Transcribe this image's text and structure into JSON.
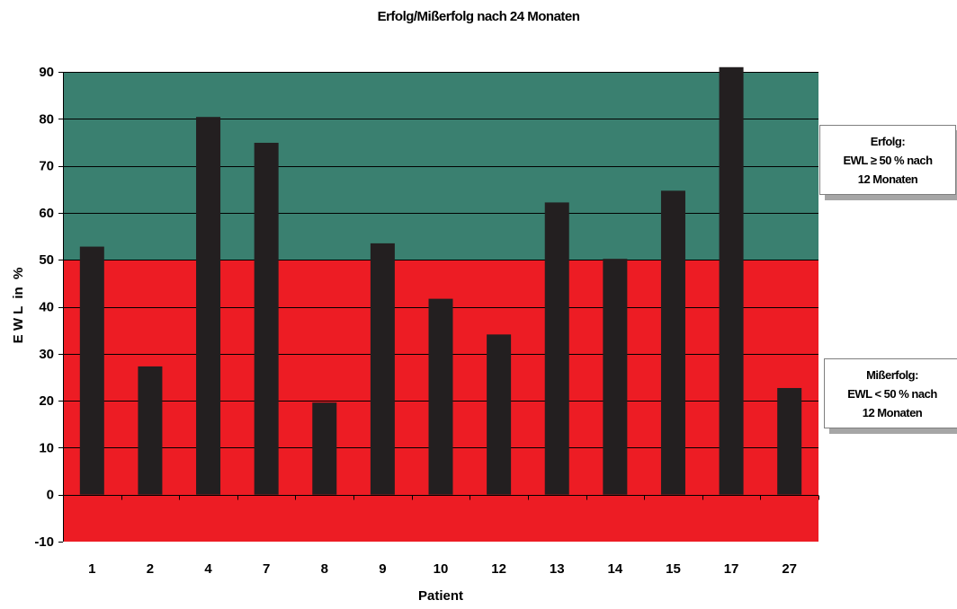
{
  "chart_data": {
    "type": "bar",
    "title": "Erfolg/Mißerfolg nach 24 Monaten",
    "xlabel": "Patient",
    "ylabel": "E W L  in  %",
    "categories": [
      "1",
      "2",
      "4",
      "7",
      "8",
      "9",
      "10",
      "12",
      "13",
      "14",
      "15",
      "17",
      "27"
    ],
    "values": [
      52.8,
      27.3,
      80.4,
      74.9,
      19.6,
      53.5,
      41.7,
      34.1,
      62.2,
      50.2,
      64.7,
      91,
      22.7
    ],
    "ylim": [
      -10,
      90
    ],
    "yticks": [
      "-10",
      "0",
      "10",
      "20",
      "30",
      "40",
      "50",
      "60",
      "70",
      "80",
      "90"
    ],
    "threshold": 50,
    "grid": true,
    "legend_position": "right",
    "regions": [
      {
        "label_lines": [
          "Erfolg:",
          "EWL ≥ 50 % nach",
          "12 Monaten"
        ],
        "color": "#3a8070"
      },
      {
        "label_lines": [
          "Mißerfolg:",
          "EWL < 50 % nach",
          "12 Monaten"
        ],
        "color": "#ed1c24"
      }
    ],
    "bar_color": "#231f20",
    "axis_color": "#000000",
    "gridline_color": "#000000"
  }
}
